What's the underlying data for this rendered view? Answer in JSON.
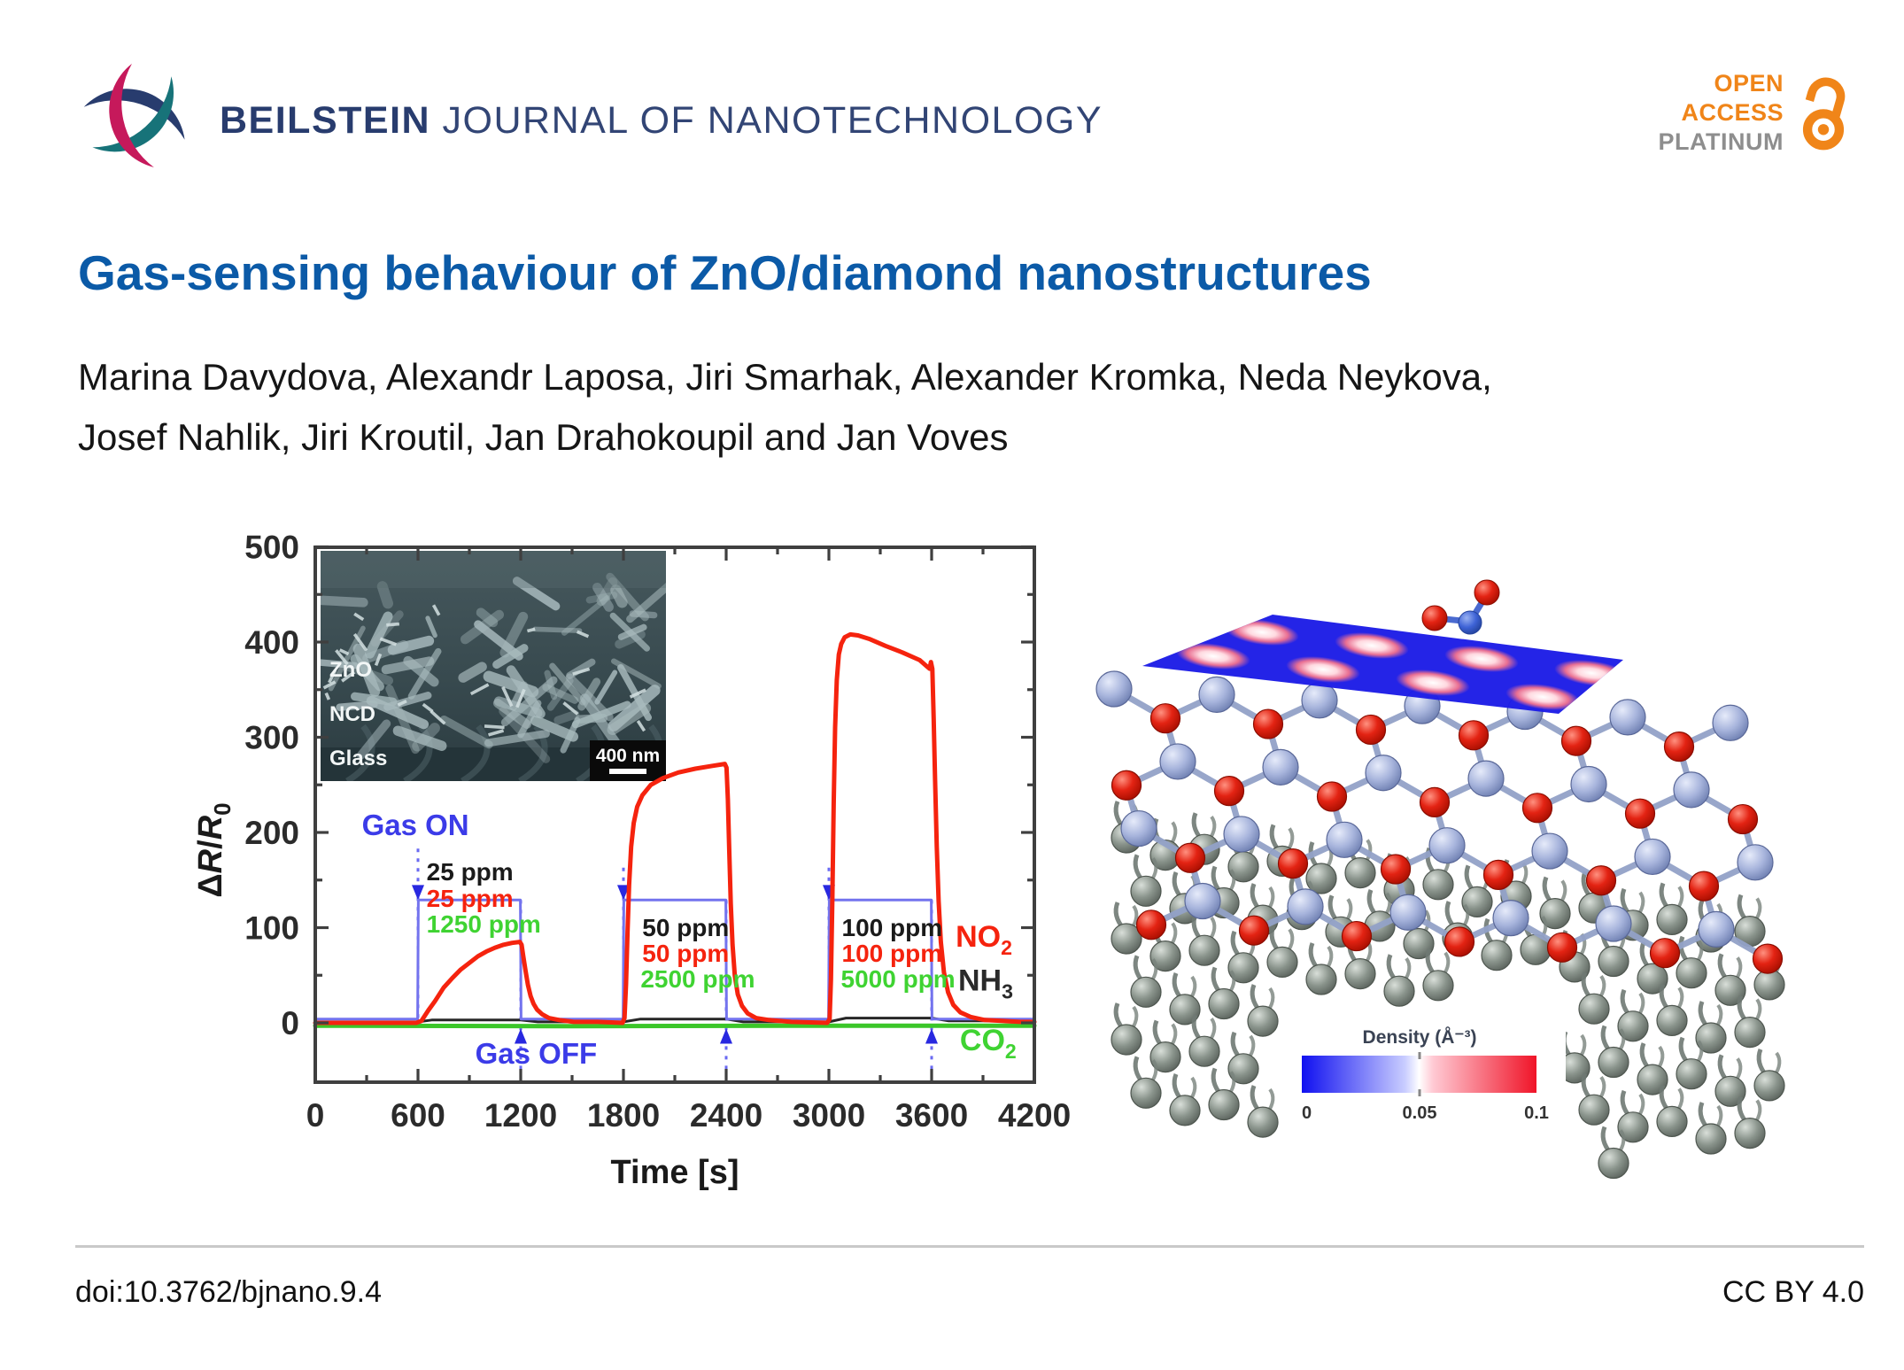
{
  "header": {
    "journal_bold": "BEILSTEIN",
    "journal_rest": " JOURNAL OF NANOTECHNOLOGY",
    "logo_colors": {
      "navy": "#283C6E",
      "teal": "#177379",
      "crimson": "#C6195B"
    },
    "badge": {
      "line1": "OPEN",
      "line2": "ACCESS",
      "line3": "PLATINUM",
      "orange": "#F08519",
      "gray": "#8E8E8E"
    }
  },
  "article": {
    "title": "Gas-sensing behaviour of ZnO/diamond nanostructures",
    "authors_line1": "Marina Davydova, Alexandr Laposa, Jiri Smarhak, Alexander Kromka, Neda Neykova,",
    "authors_line2": "Josef Nahlik, Jiri Kroutil, Jan Drahokoupil and Jan Voves"
  },
  "footer": {
    "doi": "doi:10.3762/bjnano.9.4",
    "license": "CC BY 4.0"
  },
  "chart_data": {
    "type": "line",
    "xlabel": "Time [s]",
    "ylabel": "ΔR/R₀",
    "xlim": [
      0,
      4200
    ],
    "ylim": [
      -62,
      500
    ],
    "x_major_ticks": [
      0,
      600,
      1200,
      1800,
      2400,
      3000,
      3600,
      4200
    ],
    "x_minor_step": 300,
    "y_major_ticks": [
      0,
      100,
      200,
      300,
      400,
      500
    ],
    "y_minor_step": 50,
    "grid": false,
    "legend_position": "inside-right",
    "series": [
      {
        "name": "CO2",
        "color": "#3BC629",
        "width": 5,
        "points": [
          [
            0,
            -3
          ],
          [
            1500,
            -3.5
          ],
          [
            3000,
            -3
          ],
          [
            4200,
            -3
          ]
        ]
      },
      {
        "name": "NH3",
        "color": "#262626",
        "width": 3,
        "points": [
          [
            0,
            1
          ],
          [
            600,
            1
          ],
          [
            680,
            3
          ],
          [
            1200,
            3
          ],
          [
            1300,
            1
          ],
          [
            1800,
            1
          ],
          [
            1900,
            4
          ],
          [
            2400,
            4
          ],
          [
            2500,
            1
          ],
          [
            3000,
            1
          ],
          [
            3100,
            5
          ],
          [
            3600,
            5
          ],
          [
            3700,
            2
          ],
          [
            4200,
            2
          ]
        ]
      },
      {
        "name": "gas-pulse",
        "color": "#7373EE",
        "width": 3,
        "points": [
          [
            0,
            4
          ],
          [
            598,
            4
          ],
          [
            602,
            129
          ],
          [
            1198,
            129
          ],
          [
            1202,
            4
          ],
          [
            1798,
            4
          ],
          [
            1802,
            129
          ],
          [
            2398,
            129
          ],
          [
            2402,
            4
          ],
          [
            2998,
            4
          ],
          [
            3002,
            129
          ],
          [
            3598,
            129
          ],
          [
            3602,
            4
          ],
          [
            4200,
            4
          ]
        ]
      },
      {
        "name": "NO2",
        "color": "#F5230E",
        "width": 5,
        "points": [
          [
            0,
            0
          ],
          [
            590,
            0
          ],
          [
            620,
            2
          ],
          [
            660,
            13
          ],
          [
            700,
            23
          ],
          [
            750,
            37
          ],
          [
            800,
            47
          ],
          [
            850,
            56
          ],
          [
            900,
            63
          ],
          [
            950,
            70
          ],
          [
            1000,
            75
          ],
          [
            1050,
            79
          ],
          [
            1100,
            82
          ],
          [
            1150,
            84
          ],
          [
            1195,
            85
          ],
          [
            1205,
            82
          ],
          [
            1215,
            70
          ],
          [
            1228,
            55
          ],
          [
            1242,
            40
          ],
          [
            1258,
            28
          ],
          [
            1275,
            20
          ],
          [
            1295,
            14
          ],
          [
            1325,
            9
          ],
          [
            1365,
            5
          ],
          [
            1425,
            3
          ],
          [
            1510,
            1
          ],
          [
            1650,
            1
          ],
          [
            1795,
            0
          ],
          [
            1806,
            5
          ],
          [
            1815,
            40
          ],
          [
            1824,
            95
          ],
          [
            1833,
            145
          ],
          [
            1845,
            185
          ],
          [
            1860,
            210
          ],
          [
            1880,
            227
          ],
          [
            1910,
            239
          ],
          [
            1960,
            250
          ],
          [
            2030,
            257
          ],
          [
            2120,
            263
          ],
          [
            2220,
            267
          ],
          [
            2320,
            270
          ],
          [
            2392,
            272
          ],
          [
            2402,
            268
          ],
          [
            2410,
            235
          ],
          [
            2418,
            180
          ],
          [
            2427,
            125
          ],
          [
            2437,
            82
          ],
          [
            2450,
            50
          ],
          [
            2468,
            30
          ],
          [
            2492,
            18
          ],
          [
            2525,
            10
          ],
          [
            2575,
            5
          ],
          [
            2650,
            3
          ],
          [
            2780,
            1
          ],
          [
            2990,
            0
          ],
          [
            3004,
            4
          ],
          [
            3012,
            45
          ],
          [
            3020,
            130
          ],
          [
            3028,
            230
          ],
          [
            3036,
            310
          ],
          [
            3046,
            360
          ],
          [
            3058,
            387
          ],
          [
            3072,
            398
          ],
          [
            3092,
            405
          ],
          [
            3125,
            408
          ],
          [
            3170,
            407
          ],
          [
            3240,
            403
          ],
          [
            3330,
            396
          ],
          [
            3430,
            389
          ],
          [
            3530,
            381
          ],
          [
            3575,
            374
          ],
          [
            3588,
            372
          ],
          [
            3596,
            379
          ],
          [
            3604,
            372
          ],
          [
            3612,
            320
          ],
          [
            3620,
            255
          ],
          [
            3630,
            185
          ],
          [
            3641,
            128
          ],
          [
            3654,
            85
          ],
          [
            3672,
            53
          ],
          [
            3696,
            32
          ],
          [
            3726,
            19
          ],
          [
            3768,
            11
          ],
          [
            3830,
            6
          ],
          [
            3910,
            3
          ],
          [
            4010,
            2
          ],
          [
            4120,
            1
          ],
          [
            4200,
            1
          ]
        ]
      }
    ],
    "gas_on_events_s": [
      600,
      1800,
      3000
    ],
    "gas_off_events_s": [
      1200,
      2400,
      3600
    ],
    "pulse_level": 129,
    "annotations": [
      {
        "text": "Gas ON",
        "t": 585,
        "v": 197,
        "color": "#3B3BE8",
        "size": 33,
        "weight": 700,
        "anchor": "middle"
      },
      {
        "text": "Gas OFF",
        "t": 1290,
        "v": -43,
        "color": "#3B3BE8",
        "size": 33,
        "weight": 700,
        "anchor": "middle"
      },
      {
        "text": "25 ppm",
        "t": 650,
        "v": 150,
        "color": "#1a1a1a",
        "size": 28,
        "weight": 700,
        "anchor": "start"
      },
      {
        "text": "25 ppm",
        "t": 650,
        "v": 122,
        "color": "#F5230E",
        "size": 28,
        "weight": 700,
        "anchor": "start"
      },
      {
        "text": "1250 ppm",
        "t": 650,
        "v": 95,
        "color": "#3FD332",
        "size": 28,
        "weight": 700,
        "anchor": "start"
      },
      {
        "text": "50 ppm",
        "t": 1910,
        "v": 91,
        "color": "#1a1a1a",
        "size": 28,
        "weight": 700,
        "anchor": "start"
      },
      {
        "text": "50 ppm",
        "t": 1910,
        "v": 64,
        "color": "#F5230E",
        "size": 28,
        "weight": 700,
        "anchor": "start"
      },
      {
        "text": "2500 ppm",
        "t": 1900,
        "v": 37,
        "color": "#3FD332",
        "size": 28,
        "weight": 700,
        "anchor": "start"
      },
      {
        "text": "100 ppm",
        "t": 3075,
        "v": 91,
        "color": "#1a1a1a",
        "size": 28,
        "weight": 700,
        "anchor": "start"
      },
      {
        "text": "100 ppm",
        "t": 3075,
        "v": 64,
        "color": "#F5230E",
        "size": 28,
        "weight": 700,
        "anchor": "start"
      },
      {
        "text": "5000 ppm",
        "t": 3070,
        "v": 37,
        "color": "#3FD332",
        "size": 28,
        "weight": 700,
        "anchor": "start"
      },
      {
        "text": "NO",
        "sub": "2",
        "t": 3740,
        "v": 80,
        "color": "#F5230E",
        "size": 34,
        "weight": 700,
        "anchor": "start"
      },
      {
        "text": "NH",
        "sub": "3",
        "t": 3755,
        "v": 34,
        "color": "#2a2a2a",
        "size": 34,
        "weight": 700,
        "anchor": "start"
      },
      {
        "text": "CO",
        "sub": "2",
        "t": 3765,
        "v": -29,
        "color": "#3FD332",
        "size": 34,
        "weight": 700,
        "anchor": "start"
      }
    ],
    "inset": {
      "layer_labels": [
        "ZnO",
        "NCD",
        "Glass"
      ],
      "scale_text": "400 nm"
    }
  },
  "molecule": {
    "atom_colors": {
      "zn": "#A7B4DC",
      "o": "#E32313",
      "c": "#8A948C",
      "n": "#3E63D6"
    },
    "plane_color": "#1D1DE6",
    "colorbar": {
      "label": "Density (Å⁻³)",
      "ticks": [
        "0",
        "0.05",
        "0.1"
      ],
      "left_color": "#1010F0",
      "mid_color": "#FFFFFF",
      "right_color": "#F01428"
    }
  }
}
